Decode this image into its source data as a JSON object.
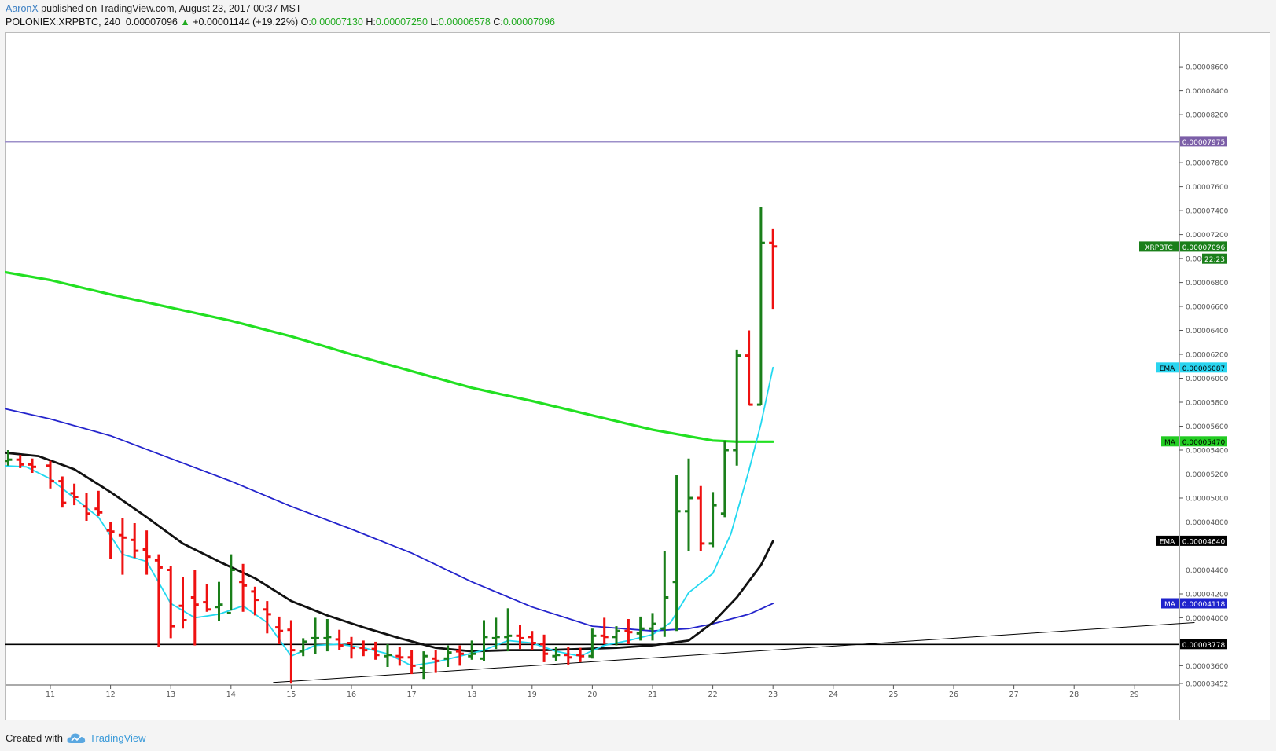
{
  "header": {
    "author": "AaronX",
    "published_text": " published on TradingView.com, August 23, 2017 00:37 MST",
    "symbol": "POLONIEX:XRPBTC, 240",
    "last": "0.00007096",
    "change": "+0.00001144 (+19.22%)",
    "o_label": "O:",
    "o_value": "0.00007130",
    "h_label": "H:",
    "h_value": "0.00007250",
    "l_label": "L:",
    "l_value": "0.00006578",
    "c_label": "C:",
    "c_value": "0.00007096"
  },
  "footer": {
    "created_with": "Created with",
    "brand": "TradingView"
  },
  "chart_data": {
    "type": "bar",
    "x_tick_labels": [
      "11",
      "12",
      "13",
      "14",
      "15",
      "16",
      "17",
      "18",
      "19",
      "20",
      "21",
      "22",
      "23",
      "24",
      "25",
      "26",
      "27",
      "28",
      "29"
    ],
    "y_tick_labels": [
      "0.00008600",
      "0.00008400",
      "0.00008200",
      "0.00007800",
      "0.00007600",
      "0.00007400",
      "0.00007200",
      "0.000068",
      "0.00006800",
      "0.00006600",
      "0.00006400",
      "0.00006200",
      "0.00006000",
      "0.00005800",
      "0.00005600",
      "0.00005400",
      "0.00005200",
      "0.00005000",
      "0.00004800",
      "0.00004400",
      "0.00004200",
      "0.00004000",
      "0.00003600",
      "0.00003452"
    ],
    "ylim": [
      3.452e-05,
      8.85e-05
    ],
    "x_day_range": [
      10.2,
      30
    ],
    "grid": false,
    "price_labels": [
      {
        "text": "0.00007975",
        "value": 7.975e-05,
        "color": "#7b5ea7",
        "tag": ""
      },
      {
        "text": "0.00007096",
        "value": 7.096e-05,
        "color": "#1a7f1a",
        "tag": "XRPBTC"
      },
      {
        "text": "22:23",
        "value": 6.996e-05,
        "color": "#1a7f1a",
        "tag": ""
      },
      {
        "text": "0.00006087",
        "value": 6.087e-05,
        "color": "#29d5f0",
        "tag": "EMA"
      },
      {
        "text": "0.00005470",
        "value": 5.47e-05,
        "color": "#22cc22",
        "tag": "MA"
      },
      {
        "text": "0.00004640",
        "value": 4.64e-05,
        "color": "#000000",
        "tag": "EMA"
      },
      {
        "text": "0.00004118",
        "value": 4.118e-05,
        "color": "#1e22cc",
        "tag": "MA"
      },
      {
        "text": "0.00003778",
        "value": 3.778e-05,
        "color": "#000000",
        "tag": ""
      }
    ],
    "horizontal_lines": [
      {
        "value": 7.975e-05,
        "color": "#9c8fc9"
      },
      {
        "value": 3.778e-05,
        "color": "#000000"
      }
    ],
    "trendline": {
      "points": [
        [
          14.7,
          3.46e-05
        ],
        [
          30,
          3.96e-05
        ]
      ],
      "color": "#000000"
    },
    "ohlc_bars": [
      [
        10.3,
        5.31e-05,
        5.4e-05,
        5.27e-05,
        5.32e-05
      ],
      [
        10.5,
        5.32e-05,
        5.36e-05,
        5.25e-05,
        5.28e-05
      ],
      [
        10.7,
        5.28e-05,
        5.33e-05,
        5.21e-05,
        5.26e-05
      ],
      [
        11.0,
        5.27e-05,
        5.31e-05,
        5.08e-05,
        5.14e-05
      ],
      [
        11.2,
        5.14e-05,
        5.18e-05,
        4.92e-05,
        4.96e-05
      ],
      [
        11.4,
        5.04e-05,
        5.12e-05,
        4.94e-05,
        5.01e-05
      ],
      [
        11.6,
        4.93e-05,
        5.04e-05,
        4.81e-05,
        4.87e-05
      ],
      [
        11.8,
        4.91e-05,
        5.06e-05,
        4.85e-05,
        4.88e-05
      ],
      [
        12.0,
        4.73e-05,
        4.8e-05,
        4.49e-05,
        4.72e-05
      ],
      [
        12.2,
        4.69e-05,
        4.83e-05,
        4.36e-05,
        4.67e-05
      ],
      [
        12.4,
        4.65e-05,
        4.79e-05,
        4.5e-05,
        4.56e-05
      ],
      [
        12.6,
        4.57e-05,
        4.73e-05,
        4.36e-05,
        4.51e-05
      ],
      [
        12.8,
        4.48e-05,
        4.53e-05,
        3.76e-05,
        4.42e-05
      ],
      [
        13.0,
        4.4e-05,
        4.43e-05,
        3.83e-05,
        3.93e-05
      ],
      [
        13.2,
        4.1e-05,
        4.34e-05,
        3.91e-05,
        3.98e-05
      ],
      [
        13.4,
        4.17e-05,
        4.4e-05,
        3.77e-05,
        4.11e-05
      ],
      [
        13.6,
        4.13e-05,
        4.28e-05,
        4.05e-05,
        4.07e-05
      ],
      [
        13.8,
        4.09e-05,
        4.3e-05,
        3.97e-05,
        4.11e-05
      ],
      [
        14.0,
        4.04e-05,
        4.53e-05,
        4.06e-05,
        4.4e-05
      ],
      [
        14.2,
        4.3e-05,
        4.45e-05,
        4.05e-05,
        4.27e-05
      ],
      [
        14.4,
        4.22e-05,
        4.26e-05,
        4.02e-05,
        4.15e-05
      ],
      [
        14.6,
        4.07e-05,
        4.14e-05,
        3.87e-05,
        4.03e-05
      ],
      [
        14.8,
        3.92e-05,
        4.01e-05,
        3.78e-05,
        3.89e-05
      ],
      [
        15.0,
        3.9e-05,
        3.98e-05,
        3.45e-05,
        3.73e-05
      ],
      [
        15.2,
        3.72e-05,
        3.83e-05,
        3.68e-05,
        3.8e-05
      ],
      [
        15.4,
        3.83e-05,
        4e-05,
        3.7e-05,
        3.83e-05
      ],
      [
        15.6,
        3.83e-05,
        3.99e-05,
        3.72e-05,
        3.84e-05
      ],
      [
        15.8,
        3.82e-05,
        3.9e-05,
        3.73e-05,
        3.77e-05
      ],
      [
        16.0,
        3.79e-05,
        3.84e-05,
        3.66e-05,
        3.75e-05
      ],
      [
        16.2,
        3.75e-05,
        3.81e-05,
        3.68e-05,
        3.73e-05
      ],
      [
        16.4,
        3.74e-05,
        3.8e-05,
        3.65e-05,
        3.69e-05
      ],
      [
        16.6,
        3.68e-05,
        3.78e-05,
        3.59e-05,
        3.69e-05
      ],
      [
        16.8,
        3.68e-05,
        3.76e-05,
        3.6e-05,
        3.67e-05
      ],
      [
        17.0,
        3.67e-05,
        3.73e-05,
        3.53e-05,
        3.6e-05
      ],
      [
        17.2,
        3.58e-05,
        3.72e-05,
        3.49e-05,
        3.68e-05
      ],
      [
        17.4,
        3.66e-05,
        3.73e-05,
        3.54e-05,
        3.64e-05
      ],
      [
        17.6,
        3.66e-05,
        3.77e-05,
        3.59e-05,
        3.71e-05
      ],
      [
        17.8,
        3.72e-05,
        3.77e-05,
        3.6e-05,
        3.7e-05
      ],
      [
        18.0,
        3.68e-05,
        3.81e-05,
        3.65e-05,
        3.7e-05
      ],
      [
        18.2,
        3.66e-05,
        3.98e-05,
        3.64e-05,
        3.84e-05
      ],
      [
        18.4,
        3.83e-05,
        4e-05,
        3.74e-05,
        3.84e-05
      ],
      [
        18.6,
        3.84e-05,
        4.08e-05,
        3.72e-05,
        3.85e-05
      ],
      [
        18.8,
        3.85e-05,
        3.94e-05,
        3.74e-05,
        3.83e-05
      ],
      [
        19.0,
        3.84e-05,
        3.89e-05,
        3.73e-05,
        3.79e-05
      ],
      [
        19.2,
        3.78e-05,
        3.86e-05,
        3.63e-05,
        3.7e-05
      ],
      [
        19.4,
        3.68e-05,
        3.76e-05,
        3.64e-05,
        3.69e-05
      ],
      [
        19.6,
        3.69e-05,
        3.76e-05,
        3.61e-05,
        3.67e-05
      ],
      [
        19.8,
        3.69e-05,
        3.75e-05,
        3.63e-05,
        3.68e-05
      ],
      [
        20.0,
        3.68e-05,
        3.91e-05,
        3.66e-05,
        3.85e-05
      ],
      [
        20.2,
        3.85e-05,
        4e-05,
        3.78e-05,
        3.84e-05
      ],
      [
        20.4,
        3.84e-05,
        3.93e-05,
        3.77e-05,
        3.89e-05
      ],
      [
        20.6,
        3.89e-05,
        3.99e-05,
        3.78e-05,
        3.88e-05
      ],
      [
        20.8,
        3.87e-05,
        4.01e-05,
        3.81e-05,
        3.91e-05
      ],
      [
        21.0,
        3.91e-05,
        4.04e-05,
        3.81e-05,
        3.95e-05
      ],
      [
        21.2,
        3.91e-05,
        4.56e-05,
        3.84e-05,
        4.17e-05
      ],
      [
        21.4,
        4.3e-05,
        5.19e-05,
        3.89e-05,
        4.89e-05
      ],
      [
        21.6,
        4.89e-05,
        5.33e-05,
        4.56e-05,
        5e-05
      ],
      [
        21.8,
        5e-05,
        5.1e-05,
        4.56e-05,
        4.62e-05
      ],
      [
        22.0,
        4.62e-05,
        5.05e-05,
        4.59e-05,
        4.94e-05
      ],
      [
        22.2,
        4.87e-05,
        5.48e-05,
        4.84e-05,
        5.4e-05
      ],
      [
        22.4,
        5.4e-05,
        6.24e-05,
        5.27e-05,
        6.19e-05
      ],
      [
        22.6,
        6.19e-05,
        6.4e-05,
        5.78e-05,
        5.78e-05
      ],
      [
        22.8,
        5.78e-05,
        7.43e-05,
        5.78e-05,
        7.13e-05
      ],
      [
        23.0,
        7.13e-05,
        7.25e-05,
        6.58e-05,
        7.1e-05
      ]
    ],
    "indicators": [
      {
        "tag": "MA",
        "color": "#22e022",
        "width": 3.2,
        "points": [
          [
            10.2,
            6.89e-05
          ],
          [
            11,
            6.82e-05
          ],
          [
            12,
            6.7e-05
          ],
          [
            13,
            6.59e-05
          ],
          [
            14,
            6.48e-05
          ],
          [
            15,
            6.35e-05
          ],
          [
            16,
            6.2e-05
          ],
          [
            17,
            6.06e-05
          ],
          [
            18,
            5.92e-05
          ],
          [
            19,
            5.81e-05
          ],
          [
            20,
            5.69e-05
          ],
          [
            21,
            5.57e-05
          ],
          [
            22,
            5.48e-05
          ],
          [
            22.4,
            5.47e-05
          ],
          [
            23,
            5.47e-05
          ]
        ]
      },
      {
        "tag": "MA",
        "color": "#2424cc",
        "width": 1.8,
        "points": [
          [
            10.2,
            5.75e-05
          ],
          [
            11,
            5.66e-05
          ],
          [
            12,
            5.52e-05
          ],
          [
            13,
            5.33e-05
          ],
          [
            14,
            5.14e-05
          ],
          [
            15,
            4.93e-05
          ],
          [
            16,
            4.74e-05
          ],
          [
            17,
            4.54e-05
          ],
          [
            18,
            4.3e-05
          ],
          [
            19,
            4.09e-05
          ],
          [
            20,
            3.93e-05
          ],
          [
            21,
            3.89e-05
          ],
          [
            21.6,
            3.91e-05
          ],
          [
            22,
            3.95e-05
          ],
          [
            22.6,
            4.03e-05
          ],
          [
            23,
            4.12e-05
          ]
        ]
      },
      {
        "tag": "EMA",
        "color": "#111111",
        "width": 2.8,
        "points": [
          [
            10.2,
            5.38e-05
          ],
          [
            10.8,
            5.35e-05
          ],
          [
            11.4,
            5.24e-05
          ],
          [
            12,
            5.05e-05
          ],
          [
            12.6,
            4.84e-05
          ],
          [
            13.2,
            4.62e-05
          ],
          [
            13.8,
            4.47e-05
          ],
          [
            14.4,
            4.33e-05
          ],
          [
            15,
            4.14e-05
          ],
          [
            15.6,
            4.02e-05
          ],
          [
            16.2,
            3.92e-05
          ],
          [
            16.8,
            3.83e-05
          ],
          [
            17.4,
            3.75e-05
          ],
          [
            18,
            3.72e-05
          ],
          [
            18.6,
            3.73e-05
          ],
          [
            19.2,
            3.73e-05
          ],
          [
            19.8,
            3.74e-05
          ],
          [
            20.4,
            3.75e-05
          ],
          [
            21,
            3.77e-05
          ],
          [
            21.6,
            3.81e-05
          ],
          [
            22,
            3.96e-05
          ],
          [
            22.4,
            4.17e-05
          ],
          [
            22.8,
            4.44e-05
          ],
          [
            23,
            4.64e-05
          ]
        ]
      },
      {
        "tag": "EMA",
        "color": "#22d8f0",
        "width": 1.8,
        "points": [
          [
            10.2,
            5.27e-05
          ],
          [
            10.6,
            5.26e-05
          ],
          [
            11,
            5.16e-05
          ],
          [
            11.4,
            5e-05
          ],
          [
            11.8,
            4.84e-05
          ],
          [
            12.2,
            4.53e-05
          ],
          [
            12.6,
            4.47e-05
          ],
          [
            13,
            4.12e-05
          ],
          [
            13.4,
            4e-05
          ],
          [
            13.8,
            4.03e-05
          ],
          [
            14.2,
            4.1e-05
          ],
          [
            14.6,
            3.96e-05
          ],
          [
            15,
            3.68e-05
          ],
          [
            15.4,
            3.77e-05
          ],
          [
            15.8,
            3.78e-05
          ],
          [
            16.2,
            3.75e-05
          ],
          [
            16.6,
            3.7e-05
          ],
          [
            17,
            3.6e-05
          ],
          [
            17.4,
            3.63e-05
          ],
          [
            17.8,
            3.68e-05
          ],
          [
            18.2,
            3.73e-05
          ],
          [
            18.6,
            3.81e-05
          ],
          [
            19,
            3.79e-05
          ],
          [
            19.4,
            3.72e-05
          ],
          [
            19.8,
            3.68e-05
          ],
          [
            20.2,
            3.77e-05
          ],
          [
            20.6,
            3.81e-05
          ],
          [
            21,
            3.86e-05
          ],
          [
            21.3,
            3.96e-05
          ],
          [
            21.6,
            4.21e-05
          ],
          [
            22,
            4.37e-05
          ],
          [
            22.3,
            4.7e-05
          ],
          [
            22.6,
            5.23e-05
          ],
          [
            22.8,
            5.62e-05
          ],
          [
            23,
            6.09e-05
          ]
        ]
      }
    ]
  }
}
